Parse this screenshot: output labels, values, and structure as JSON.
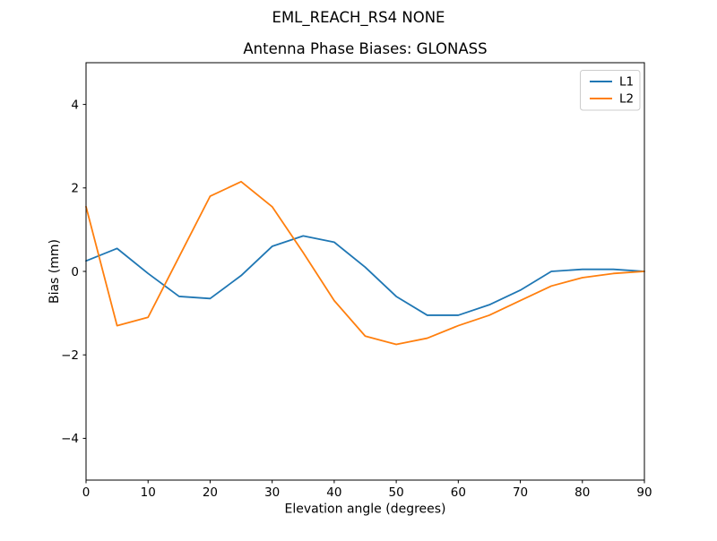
{
  "figure": {
    "suptitle": "EML_REACH_RS4   NONE",
    "axes_title": "Antenna Phase Biases: GLONASS"
  },
  "chart_data": {
    "type": "line",
    "suptitle": "EML_REACH_RS4   NONE",
    "title": "Antenna Phase Biases: GLONASS",
    "xlabel": "Elevation angle (degrees)",
    "ylabel": "Bias (mm)",
    "xlim": [
      0,
      90
    ],
    "ylim": [
      -5,
      5
    ],
    "x_ticks": [
      0,
      10,
      20,
      30,
      40,
      50,
      60,
      70,
      80,
      90
    ],
    "y_ticks": [
      -4,
      -2,
      0,
      2,
      4
    ],
    "grid": false,
    "background": "#ffffff",
    "legend": {
      "position": "upper right",
      "entries": [
        "L1",
        "L2"
      ]
    },
    "x": [
      0,
      5,
      10,
      15,
      20,
      25,
      30,
      35,
      40,
      45,
      50,
      55,
      60,
      65,
      70,
      75,
      80,
      85,
      90
    ],
    "series": [
      {
        "name": "L1",
        "color": "#1f77b4",
        "values": [
          0.25,
          0.55,
          -0.05,
          -0.6,
          -0.65,
          -0.1,
          0.6,
          0.85,
          0.7,
          0.1,
          -0.6,
          -1.05,
          -1.05,
          -0.8,
          -0.45,
          0.0,
          0.05,
          0.05,
          0.0
        ]
      },
      {
        "name": "L2",
        "color": "#ff7f0e",
        "values": [
          1.55,
          -1.3,
          -1.1,
          0.35,
          1.8,
          2.15,
          1.55,
          0.45,
          -0.7,
          -1.55,
          -1.75,
          -1.6,
          -1.3,
          -1.05,
          -0.7,
          -0.35,
          -0.15,
          -0.05,
          0.0
        ]
      }
    ]
  }
}
